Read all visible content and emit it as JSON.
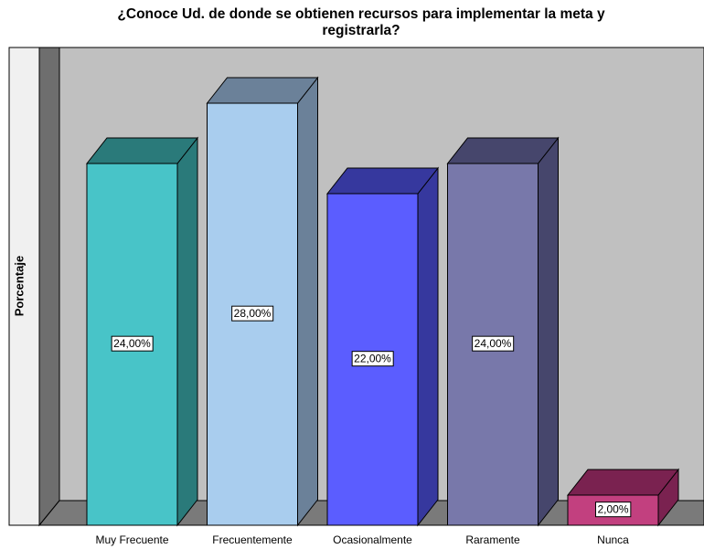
{
  "chart_data": {
    "type": "bar3d",
    "title": [
      "¿Conoce Ud. de donde se obtienen recursos para  implementar la meta y",
      "registrarla?"
    ],
    "ylabel": "Porcentaje",
    "categories": [
      "Muy Frecuente",
      "Frecuentemente",
      "Ocasionalmente",
      "Raramente",
      "Nunca"
    ],
    "values": [
      24,
      28,
      22,
      24,
      2
    ],
    "value_labels": [
      "24,00%",
      "28,00%",
      "22,00%",
      "24,00%",
      "2,00%"
    ],
    "colors": [
      "#48c4c8",
      "#a9cdee",
      "#5b5dff",
      "#7878aa",
      "#c2407f"
    ],
    "side_colors": [
      "#2a7a7a",
      "#6b8199",
      "#36389e",
      "#46466c",
      "#7a2250"
    ],
    "ylim": [
      0,
      30
    ]
  }
}
